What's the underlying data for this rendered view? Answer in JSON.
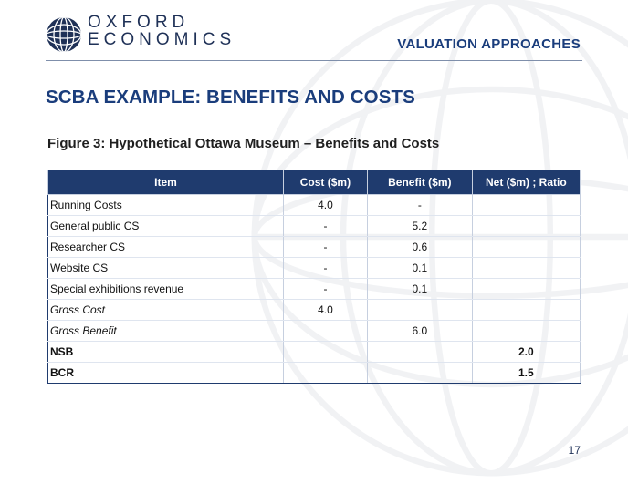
{
  "header": {
    "logo_line1": "OXFORD",
    "logo_line2": "ECONOMICS",
    "section": "VALUATION APPROACHES"
  },
  "slide": {
    "title": "SCBA EXAMPLE: BENEFITS AND COSTS",
    "figure_title": "Figure 3: Hypothetical Ottawa Museum – Benefits and Costs",
    "page_number": "17"
  },
  "table": {
    "headers": [
      "Item",
      "Cost ($m)",
      "Benefit ($m)",
      "Net ($m) ; Ratio"
    ],
    "rows": [
      {
        "item": "Running Costs",
        "cost": "4.0",
        "benefit": "-",
        "net": ""
      },
      {
        "item": "General public CS",
        "cost": "-",
        "benefit": "5.2",
        "net": ""
      },
      {
        "item": "Researcher CS",
        "cost": "-",
        "benefit": "0.6",
        "net": ""
      },
      {
        "item": "Website CS",
        "cost": "-",
        "benefit": "0.1",
        "net": ""
      },
      {
        "item": "Special exhibitions revenue",
        "cost": "-",
        "benefit": "0.1",
        "net": ""
      },
      {
        "item": "Gross Cost",
        "cost": "4.0",
        "benefit": "",
        "net": ""
      },
      {
        "item": "Gross Benefit",
        "cost": "",
        "benefit": "6.0",
        "net": ""
      },
      {
        "item": "NSB",
        "cost": "",
        "benefit": "",
        "net": "2.0"
      },
      {
        "item": "BCR",
        "cost": "",
        "benefit": "",
        "net": "1.5"
      }
    ]
  },
  "colors": {
    "brand_navy": "#1f3157",
    "title_blue": "#1a3d7c",
    "header_fill": "#1f3b6e"
  }
}
